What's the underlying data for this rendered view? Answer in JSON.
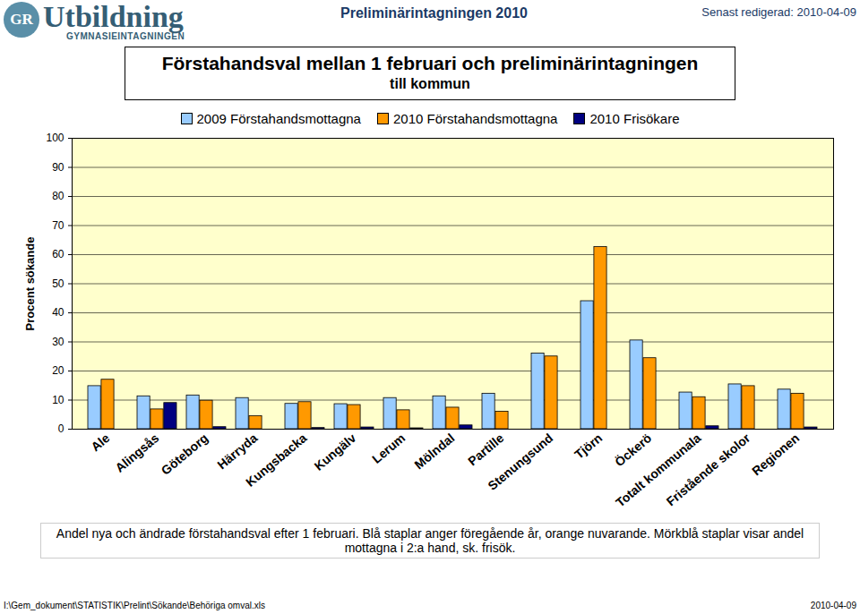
{
  "header": {
    "logo_mark": "GR",
    "logo_main": "Utbildning",
    "logo_sub": "GYMNASIEINTAGNINGEN",
    "center": "Preliminärintagningen 2010",
    "right": "Senast redigerad: 2010-04-09"
  },
  "chart_data": {
    "type": "bar",
    "title": "Förstahandsval mellan 1 februari och preliminärintagningen",
    "subtitle": "till kommun",
    "y_label": "Procent sökande",
    "caption": "Andel nya och ändrade förstahandsval efter 1 februari. Blå staplar anger föregående år, orange nuvarande. Mörkblå staplar visar andel mottagna i 2:a hand, sk. frisök.",
    "categories": [
      "Ale",
      "Alingsås",
      "Göteborg",
      "Härryda",
      "Kungsbacka",
      "Kungälv",
      "Lerum",
      "Mölndal",
      "Partille",
      "Stenungsund",
      "Tjörn",
      "Öckerö",
      "Totalt kommunala",
      "Fristående skolor",
      "Regionen"
    ],
    "series": [
      {
        "name": "2009 Förstahandsmottagna",
        "color": "#99ccff",
        "values": [
          14.8,
          11.3,
          11.6,
          10.7,
          8.7,
          8.6,
          10.7,
          11.3,
          12.2,
          26,
          44,
          30.5,
          12.6,
          15.4,
          13.6
        ]
      },
      {
        "name": "2010 Förstahandsmottagna",
        "color": "#ff9900",
        "values": [
          17,
          6.8,
          9.8,
          4.5,
          9.3,
          8.3,
          6.5,
          7.4,
          6,
          25,
          62.6,
          24.4,
          11,
          14.8,
          12.2
        ]
      },
      {
        "name": "2010 Frisökare",
        "color": "#000080",
        "values": [
          0,
          9,
          0.7,
          0,
          0.4,
          0.6,
          0.3,
          1.3,
          0,
          0,
          0,
          0,
          1,
          0,
          0.6
        ]
      }
    ],
    "ylim": [
      0,
      100
    ],
    "yticks": [
      0,
      10,
      20,
      30,
      40,
      50,
      60,
      70,
      80,
      90,
      100
    ],
    "grid": true,
    "legend": "top"
  },
  "footer": {
    "left": "I:\\Gem_dokument\\STATISTIK\\Prelint\\Sökande\\Behöriga omval.xls",
    "right": "2010-04-09"
  }
}
